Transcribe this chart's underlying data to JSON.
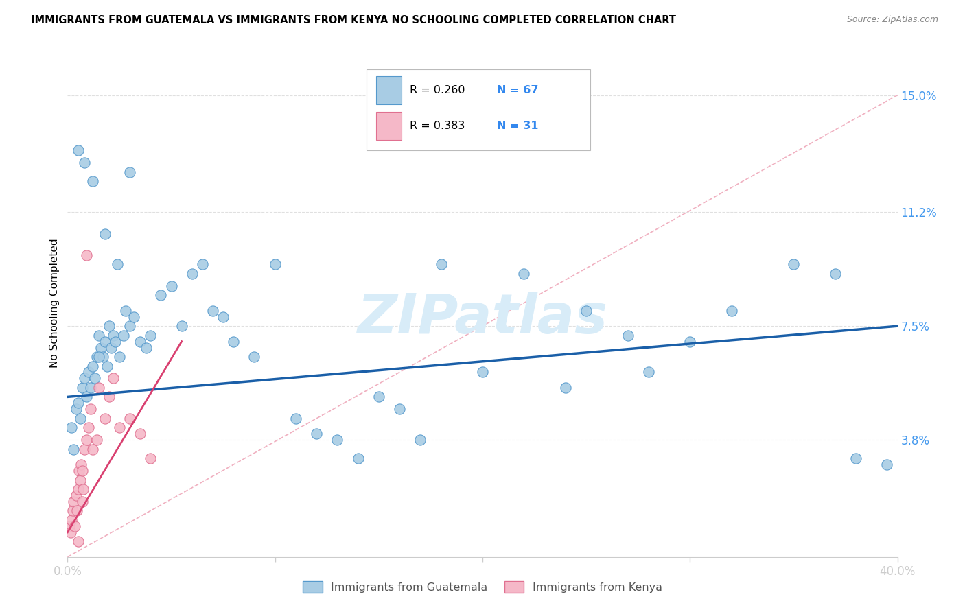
{
  "title": "IMMIGRANTS FROM GUATEMALA VS IMMIGRANTS FROM KENYA NO SCHOOLING COMPLETED CORRELATION CHART",
  "source": "Source: ZipAtlas.com",
  "ylabel_label": "No Schooling Completed",
  "ytick_labels": [
    "3.8%",
    "7.5%",
    "11.2%",
    "15.0%"
  ],
  "ytick_values": [
    3.8,
    7.5,
    11.2,
    15.0
  ],
  "xlim": [
    0.0,
    40.0
  ],
  "ylim": [
    0.0,
    16.5
  ],
  "legend_r1": "R = 0.260",
  "legend_n1": "N = 67",
  "legend_r2": "R = 0.383",
  "legend_n2": "N = 31",
  "color_blue": "#a8cce4",
  "color_pink": "#f5b8c8",
  "color_blue_edge": "#5599cc",
  "color_pink_edge": "#e07090",
  "color_trendline_blue": "#1a5fa8",
  "color_trendline_pink": "#d94070",
  "color_diagonal": "#f0b0c0",
  "watermark_text": "ZIPatlas",
  "watermark_color": "#d8ecf8",
  "background_color": "#ffffff",
  "grid_color": "#e0e0e0",
  "scatter_blue_x": [
    0.2,
    0.3,
    0.4,
    0.5,
    0.6,
    0.7,
    0.8,
    0.9,
    1.0,
    1.1,
    1.2,
    1.3,
    1.4,
    1.5,
    1.6,
    1.7,
    1.8,
    1.9,
    2.0,
    2.1,
    2.2,
    2.3,
    2.5,
    2.7,
    2.8,
    3.0,
    3.2,
    3.5,
    3.8,
    4.0,
    4.5,
    5.0,
    5.5,
    6.0,
    6.5,
    7.0,
    7.5,
    8.0,
    9.0,
    10.0,
    11.0,
    12.0,
    13.0,
    14.0,
    15.0,
    16.0,
    17.0,
    18.0,
    20.0,
    22.0,
    24.0,
    25.0,
    27.0,
    28.0,
    30.0,
    32.0,
    35.0,
    37.0,
    38.0,
    39.5,
    1.5,
    2.4,
    3.0,
    0.5,
    0.8,
    1.2,
    1.8
  ],
  "scatter_blue_y": [
    4.2,
    3.5,
    4.8,
    5.0,
    4.5,
    5.5,
    5.8,
    5.2,
    6.0,
    5.5,
    6.2,
    5.8,
    6.5,
    7.2,
    6.8,
    6.5,
    7.0,
    6.2,
    7.5,
    6.8,
    7.2,
    7.0,
    6.5,
    7.2,
    8.0,
    7.5,
    7.8,
    7.0,
    6.8,
    7.2,
    8.5,
    8.8,
    7.5,
    9.2,
    9.5,
    8.0,
    7.8,
    7.0,
    6.5,
    9.5,
    4.5,
    4.0,
    3.8,
    3.2,
    5.2,
    4.8,
    3.8,
    9.5,
    6.0,
    9.2,
    5.5,
    8.0,
    7.2,
    6.0,
    7.0,
    8.0,
    9.5,
    9.2,
    3.2,
    3.0,
    6.5,
    9.5,
    12.5,
    13.2,
    12.8,
    12.2,
    10.5
  ],
  "scatter_pink_x": [
    0.1,
    0.15,
    0.2,
    0.25,
    0.3,
    0.35,
    0.4,
    0.45,
    0.5,
    0.55,
    0.6,
    0.65,
    0.7,
    0.75,
    0.8,
    0.9,
    1.0,
    1.1,
    1.2,
    1.4,
    1.5,
    1.8,
    2.0,
    2.2,
    2.5,
    3.0,
    3.5,
    4.0,
    0.5,
    0.7,
    0.9
  ],
  "scatter_pink_y": [
    1.0,
    0.8,
    1.2,
    1.5,
    1.8,
    1.0,
    2.0,
    1.5,
    2.2,
    2.8,
    2.5,
    3.0,
    2.8,
    2.2,
    3.5,
    3.8,
    4.2,
    4.8,
    3.5,
    3.8,
    5.5,
    4.5,
    5.2,
    5.8,
    4.2,
    4.5,
    4.0,
    3.2,
    0.5,
    1.8,
    9.8
  ],
  "trendline_blue_x0": 0.0,
  "trendline_blue_y0": 5.2,
  "trendline_blue_x1": 40.0,
  "trendline_blue_y1": 7.5,
  "trendline_pink_x0": 0.0,
  "trendline_pink_y0": 0.8,
  "trendline_pink_x1": 5.5,
  "trendline_pink_y1": 7.0,
  "diagonal_x0": 0.0,
  "diagonal_y0": 0.0,
  "diagonal_x1": 40.0,
  "diagonal_y1": 15.0
}
